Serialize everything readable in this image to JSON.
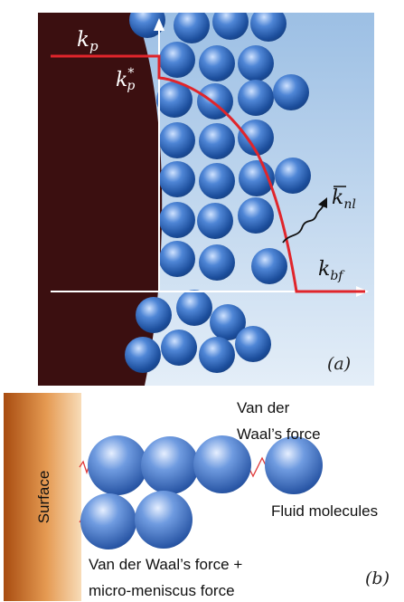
{
  "panel_a": {
    "label_kp": "k",
    "label_kp_sub": "p",
    "label_kp_star": "k",
    "label_kp_star_sub": "p",
    "label_kp_star_sup": "*",
    "label_knl": "k",
    "label_knl_sub": "nl",
    "label_kbf": "k",
    "label_kbf_sub": "bf",
    "panel_tag": "(a)",
    "colors": {
      "particle": "#3b0f10",
      "fluid_top": "#9fc0e3",
      "fluid_bottom": "#e2edf8",
      "profile_line": "#e0252b",
      "axis": "#ffffff",
      "molecule": "#2a64b5"
    }
  },
  "panel_b": {
    "surface_label": "Surface",
    "vdw_label_line1": "Van der",
    "vdw_label_line2": "Waal’s force",
    "fluid_label": "Fluid molecules",
    "combined_label_line1": "Van der Waal’s force +",
    "combined_label_line2": "micro-meniscus force",
    "panel_tag": "(b)",
    "colors": {
      "surface_dark": "#b85a16",
      "surface_light": "#f6d2a3",
      "molecule": "#2e5fb0",
      "spring": "#e03a3a"
    }
  }
}
